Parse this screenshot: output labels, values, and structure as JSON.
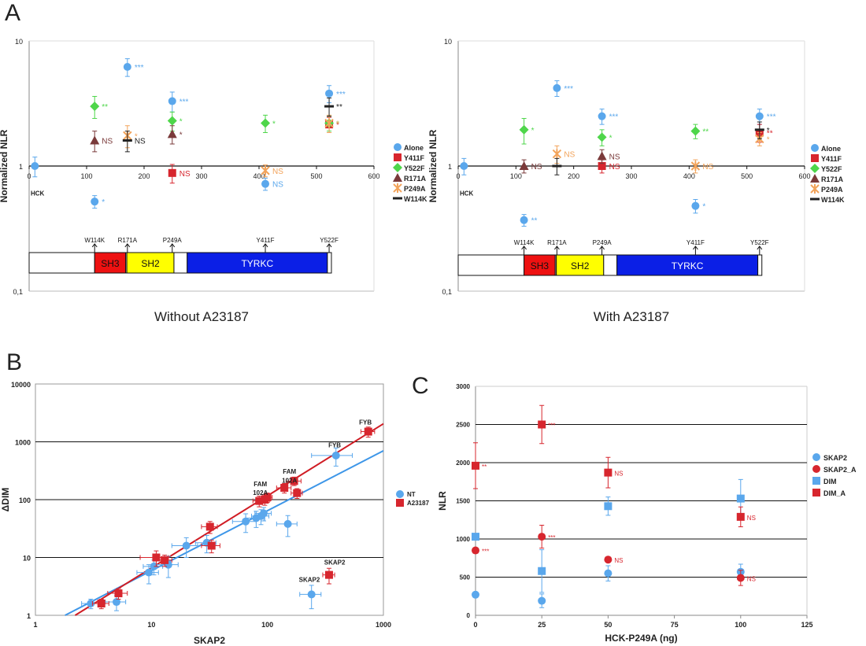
{
  "panel_letters": {
    "a": "A",
    "b": "B",
    "c": "C"
  },
  "colors": {
    "blue": "#5aa7ec",
    "red": "#d7262e",
    "green": "#4ed64a",
    "brown": "#7a3a3a",
    "orange": "#f2a35a",
    "black": "#222222",
    "domain_sh3": "#ee1111",
    "domain_sh2": "#ffff00",
    "domain_tyrkc": "#0b1fe6",
    "line_b_blue": "#3d96e8",
    "line_b_red": "#d01c24"
  },
  "chart_data": [
    {
      "id": "A1",
      "type": "scatter",
      "title": "Without A23187",
      "xlabel": "",
      "ylabel": "Normalized NLR",
      "xlim": [
        0,
        600
      ],
      "ylim": [
        0.1,
        10
      ],
      "yscale": "log",
      "xticks": [
        "0",
        "100",
        "200",
        "300",
        "400",
        "500",
        "600"
      ],
      "yticks": [
        "0,1",
        "1",
        "10"
      ],
      "hck_label": "HCK",
      "legend": [
        "Alone",
        "Y411F",
        "Y522F",
        "R171A",
        "P249A",
        "W114K"
      ],
      "domains": [
        {
          "name": "",
          "start": 0,
          "end": 114
        },
        {
          "name": "SH3",
          "start": 114,
          "end": 168
        },
        {
          "name": "",
          "start": 168,
          "end": 170
        },
        {
          "name": "SH2",
          "start": 170,
          "end": 252
        },
        {
          "name": "",
          "start": 252,
          "end": 275
        },
        {
          "name": "TYRKC",
          "start": 275,
          "end": 519
        },
        {
          "name": "",
          "start": 519,
          "end": 526
        }
      ],
      "mutation_sites": [
        {
          "label": "W114K",
          "pos": 114
        },
        {
          "label": "R171A",
          "pos": 171
        },
        {
          "label": "P249A",
          "pos": 249
        },
        {
          "label": "Y411F",
          "pos": 411
        },
        {
          "label": "Y522F",
          "pos": 522
        }
      ],
      "points": [
        {
          "series": "Alone",
          "x": 10,
          "y": 1.0,
          "err": 0.18,
          "note": ""
        },
        {
          "series": "Alone",
          "x": 114,
          "y": 0.52,
          "err": 0.06,
          "note": "*"
        },
        {
          "series": "Alone",
          "x": 171,
          "y": 6.2,
          "err": 1.0,
          "note": "***"
        },
        {
          "series": "Alone",
          "x": 249,
          "y": 3.3,
          "err": 0.6,
          "note": "***"
        },
        {
          "series": "Alone",
          "x": 411,
          "y": 0.72,
          "err": 0.08,
          "note": "NS"
        },
        {
          "series": "Alone",
          "x": 522,
          "y": 3.8,
          "err": 0.6,
          "note": "***"
        },
        {
          "series": "Y411F",
          "x": 249,
          "y": 0.88,
          "err": 0.15,
          "note": "NS"
        },
        {
          "series": "Y411F",
          "x": 522,
          "y": 2.15,
          "err": 0.3,
          "note": "*"
        },
        {
          "series": "Y522F",
          "x": 114,
          "y": 3.0,
          "err": 0.6,
          "note": "**"
        },
        {
          "series": "Y522F",
          "x": 249,
          "y": 2.3,
          "err": 0.4,
          "note": "*"
        },
        {
          "series": "Y522F",
          "x": 411,
          "y": 2.2,
          "err": 0.35,
          "note": "*"
        },
        {
          "series": "Y522F",
          "x": 522,
          "y": 2.2,
          "err": 0.3,
          "note": "*"
        },
        {
          "series": "R171A",
          "x": 114,
          "y": 1.6,
          "err": 0.3,
          "note": "NS"
        },
        {
          "series": "R171A",
          "x": 249,
          "y": 1.8,
          "err": 0.3,
          "note": "*"
        },
        {
          "series": "P249A",
          "x": 171,
          "y": 1.75,
          "err": 0.35,
          "note": "*"
        },
        {
          "series": "P249A",
          "x": 411,
          "y": 0.92,
          "err": 0.1,
          "note": "NS"
        },
        {
          "series": "P249A",
          "x": 522,
          "y": 2.2,
          "err": 0.35,
          "note": "*"
        },
        {
          "series": "W114K",
          "x": 171,
          "y": 1.6,
          "err": 0.3,
          "note": "NS"
        },
        {
          "series": "W114K",
          "x": 522,
          "y": 3.0,
          "err": 0.5,
          "note": "**"
        }
      ]
    },
    {
      "id": "A2",
      "type": "scatter",
      "title": "With A23187",
      "xlabel": "",
      "ylabel": "Normalized NLR",
      "xlim": [
        0,
        600
      ],
      "ylim": [
        0.1,
        10
      ],
      "yscale": "log",
      "xticks": [
        "0",
        "100",
        "200",
        "300",
        "400",
        "500",
        "600"
      ],
      "yticks": [
        "0,1",
        "1",
        "10"
      ],
      "hck_label": "HCK",
      "legend": [
        "Alone",
        "Y411F",
        "Y522F",
        "R171A",
        "P249A",
        "W114K"
      ],
      "domains": [
        {
          "name": "",
          "start": 0,
          "end": 114
        },
        {
          "name": "SH3",
          "start": 114,
          "end": 168
        },
        {
          "name": "",
          "start": 168,
          "end": 170
        },
        {
          "name": "SH2",
          "start": 170,
          "end": 252
        },
        {
          "name": "",
          "start": 252,
          "end": 275
        },
        {
          "name": "TYRKC",
          "start": 275,
          "end": 519
        },
        {
          "name": "",
          "start": 519,
          "end": 526
        }
      ],
      "mutation_sites": [
        {
          "label": "W114K",
          "pos": 114
        },
        {
          "label": "R171A",
          "pos": 171
        },
        {
          "label": "P249A",
          "pos": 249
        },
        {
          "label": "Y411F",
          "pos": 411
        },
        {
          "label": "Y522F",
          "pos": 522
        }
      ],
      "points": [
        {
          "series": "Alone",
          "x": 10,
          "y": 1.0,
          "err": 0.15,
          "note": ""
        },
        {
          "series": "Alone",
          "x": 114,
          "y": 0.37,
          "err": 0.04,
          "note": "**"
        },
        {
          "series": "Alone",
          "x": 171,
          "y": 4.2,
          "err": 0.6,
          "note": "***"
        },
        {
          "series": "Alone",
          "x": 249,
          "y": 2.5,
          "err": 0.35,
          "note": "***"
        },
        {
          "series": "Alone",
          "x": 411,
          "y": 0.48,
          "err": 0.06,
          "note": "*"
        },
        {
          "series": "Alone",
          "x": 522,
          "y": 2.5,
          "err": 0.35,
          "note": "***"
        },
        {
          "series": "Y411F",
          "x": 249,
          "y": 1.0,
          "err": 0.12,
          "note": "NS"
        },
        {
          "series": "Y411F",
          "x": 522,
          "y": 1.85,
          "err": 0.3,
          "note": "**"
        },
        {
          "series": "Y522F",
          "x": 114,
          "y": 1.95,
          "err": 0.45,
          "note": "*"
        },
        {
          "series": "Y522F",
          "x": 249,
          "y": 1.7,
          "err": 0.25,
          "note": "*"
        },
        {
          "series": "Y522F",
          "x": 411,
          "y": 1.9,
          "err": 0.25,
          "note": "**"
        },
        {
          "series": "R171A",
          "x": 114,
          "y": 1.0,
          "err": 0.12,
          "note": "NS"
        },
        {
          "series": "R171A",
          "x": 249,
          "y": 1.2,
          "err": 0.15,
          "note": "NS"
        },
        {
          "series": "P249A",
          "x": 171,
          "y": 1.25,
          "err": 0.2,
          "note": "NS"
        },
        {
          "series": "P249A",
          "x": 411,
          "y": 1.0,
          "err": 0.12,
          "note": "NS"
        },
        {
          "series": "P249A",
          "x": 522,
          "y": 1.65,
          "err": 0.2,
          "note": "*"
        },
        {
          "series": "W114K",
          "x": 171,
          "y": 1.0,
          "err": 0.15,
          "note": ""
        },
        {
          "series": "W114K",
          "x": 522,
          "y": 1.95,
          "err": 0.3,
          "note": "*"
        }
      ]
    },
    {
      "id": "B",
      "type": "scatter",
      "title": "",
      "xlabel": "SKAP2",
      "ylabel": "ΔDIM",
      "xscale": "log",
      "yscale": "log",
      "xlim": [
        1,
        1000
      ],
      "ylim": [
        1,
        10000
      ],
      "xticks": [
        "1",
        "10",
        "100",
        "1000"
      ],
      "yticks": [
        "1",
        "10",
        "100",
        "1000",
        "10000"
      ],
      "legend": [
        "NT",
        "A23187"
      ],
      "fits": [
        {
          "series": "NT",
          "x": [
            1.8,
            1000
          ],
          "y": [
            1,
            700
          ]
        },
        {
          "series": "A23187",
          "x": [
            2.2,
            1000
          ],
          "y": [
            1,
            2050
          ]
        }
      ],
      "labels": [
        {
          "text": "FYB",
          "x": 700,
          "y": 2000,
          "series": "A23187"
        },
        {
          "text": "FYB",
          "x": 380,
          "y": 800,
          "series": "NT"
        },
        {
          "text": "FAM",
          "x": 155,
          "y": 280,
          "series": "A23187"
        },
        {
          "text": "102A",
          "x": 155,
          "y": 195,
          "series": "A23187"
        },
        {
          "text": "FAM",
          "x": 87,
          "y": 170,
          "series": "NT"
        },
        {
          "text": "102A",
          "x": 87,
          "y": 120,
          "series": "NT"
        },
        {
          "text": "SKAP2",
          "x": 380,
          "y": 7.5,
          "series": "A23187"
        },
        {
          "text": "SKAP2",
          "x": 230,
          "y": 3.8,
          "series": "NT"
        }
      ],
      "series": [
        {
          "name": "NT",
          "points": [
            {
              "x": 3,
              "y": 1.6,
              "xerr": 0.5,
              "yerr": 0.3
            },
            {
              "x": 5,
              "y": 1.7,
              "xerr": 1,
              "yerr": 0.5
            },
            {
              "x": 9.5,
              "y": 5.5,
              "xerr": 2,
              "yerr": 2
            },
            {
              "x": 10.5,
              "y": 7,
              "xerr": 2,
              "yerr": 2
            },
            {
              "x": 14,
              "y": 7.5,
              "xerr": 3,
              "yerr": 3
            },
            {
              "x": 20,
              "y": 16,
              "xerr": 5,
              "yerr": 6
            },
            {
              "x": 30,
              "y": 18,
              "xerr": 6,
              "yerr": 6
            },
            {
              "x": 65,
              "y": 42,
              "xerr": 15,
              "yerr": 15
            },
            {
              "x": 80,
              "y": 48,
              "xerr": 15,
              "yerr": 15
            },
            {
              "x": 88,
              "y": 52,
              "xerr": 15,
              "yerr": 15
            },
            {
              "x": 93,
              "y": 58,
              "xerr": 15,
              "yerr": 15
            },
            {
              "x": 150,
              "y": 38,
              "xerr": 30,
              "yerr": 15
            },
            {
              "x": 390,
              "y": 580,
              "xerr": 150,
              "yerr": 200
            },
            {
              "x": 240,
              "y": 2.3,
              "xerr": 50,
              "yerr": 1
            }
          ]
        },
        {
          "name": "A23187",
          "points": [
            {
              "x": 3.7,
              "y": 1.6,
              "xerr": 0.6,
              "yerr": 0.3
            },
            {
              "x": 5.2,
              "y": 2.4,
              "xerr": 1,
              "yerr": 0.5
            },
            {
              "x": 11,
              "y": 10,
              "xerr": 3,
              "yerr": 3
            },
            {
              "x": 13,
              "y": 9,
              "xerr": 2,
              "yerr": 2
            },
            {
              "x": 32,
              "y": 34,
              "xerr": 5,
              "yerr": 8
            },
            {
              "x": 33,
              "y": 16,
              "xerr": 6,
              "yerr": 4
            },
            {
              "x": 85,
              "y": 95,
              "xerr": 10,
              "yerr": 20
            },
            {
              "x": 95,
              "y": 100,
              "xerr": 10,
              "yerr": 20
            },
            {
              "x": 100,
              "y": 110,
              "xerr": 10,
              "yerr": 20
            },
            {
              "x": 140,
              "y": 160,
              "xerr": 20,
              "yerr": 30
            },
            {
              "x": 170,
              "y": 210,
              "xerr": 25,
              "yerr": 35
            },
            {
              "x": 180,
              "y": 130,
              "xerr": 20,
              "yerr": 25
            },
            {
              "x": 740,
              "y": 1500,
              "xerr": 100,
              "yerr": 300
            },
            {
              "x": 340,
              "y": 5,
              "xerr": 40,
              "yerr": 1.5
            }
          ]
        }
      ]
    },
    {
      "id": "C",
      "type": "scatter",
      "title": "",
      "xlabel": "HCK-P249A (ng)",
      "ylabel": "NLR",
      "xlim": [
        0,
        125
      ],
      "ylim": [
        0,
        3000
      ],
      "xticks": [
        "0",
        "25",
        "50",
        "75",
        "100",
        "125"
      ],
      "yticks": [
        "0",
        "500",
        "1000",
        "1500",
        "2000",
        "2500",
        "3000"
      ],
      "legend": [
        "SKAP2",
        "SKAP2_A",
        "DIM",
        "DIM_A"
      ],
      "series": [
        {
          "name": "SKAP2",
          "points": [
            {
              "x": 0,
              "y": 270,
              "err": 0,
              "note": ""
            },
            {
              "x": 25,
              "y": 190,
              "err": 90,
              "note": ""
            },
            {
              "x": 50,
              "y": 550,
              "err": 100,
              "note": ""
            },
            {
              "x": 100,
              "y": 570,
              "err": 100,
              "note": ""
            }
          ]
        },
        {
          "name": "SKAP2_A",
          "points": [
            {
              "x": 0,
              "y": 850,
              "err": 0,
              "note": "***"
            },
            {
              "x": 25,
              "y": 1030,
              "err": 150,
              "note": "***"
            },
            {
              "x": 50,
              "y": 730,
              "err": 0,
              "note": "NS"
            },
            {
              "x": 100,
              "y": 490,
              "err": 100,
              "note": "NS"
            }
          ]
        },
        {
          "name": "DIM",
          "points": [
            {
              "x": 0,
              "y": 1030,
              "err": 0,
              "note": ""
            },
            {
              "x": 25,
              "y": 580,
              "err": 280,
              "note": ""
            },
            {
              "x": 50,
              "y": 1430,
              "err": 120,
              "note": ""
            },
            {
              "x": 100,
              "y": 1530,
              "err": 250,
              "note": ""
            }
          ]
        },
        {
          "name": "DIM_A",
          "points": [
            {
              "x": 0,
              "y": 1960,
              "err": 300,
              "note": "**"
            },
            {
              "x": 25,
              "y": 2500,
              "err": 250,
              "note": "***"
            },
            {
              "x": 50,
              "y": 1870,
              "err": 200,
              "note": "NS"
            },
            {
              "x": 100,
              "y": 1290,
              "err": 130,
              "note": "NS"
            }
          ]
        }
      ]
    }
  ]
}
